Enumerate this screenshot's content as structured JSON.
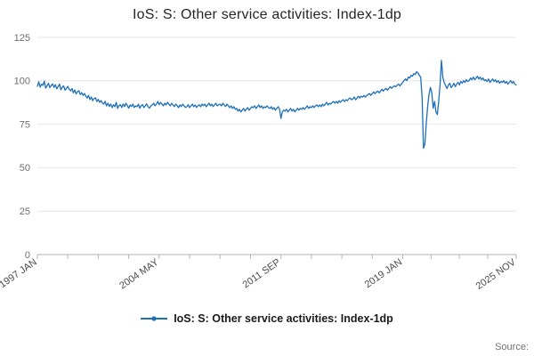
{
  "chart_data": {
    "type": "line",
    "title": "IoS: S: Other service activities: Index-1dp",
    "legend": "IoS: S: Other service activities: Index-1dp",
    "xlabel": "",
    "ylabel": "",
    "ylim": [
      0,
      125
    ],
    "yticks": [
      0,
      25,
      50,
      75,
      100,
      125
    ],
    "grid": true,
    "legend_position": "bottom",
    "line_color": "#1d70b8",
    "x_start": "1997 JAN",
    "frequency": "monthly",
    "x_tick_labels": [
      {
        "index": 0,
        "label": "1997 JAN"
      },
      {
        "index": 88,
        "label": "2004 MAY"
      },
      {
        "index": 176,
        "label": "2011 SEP"
      },
      {
        "index": 264,
        "label": "2019 JAN"
      },
      {
        "index": 346,
        "label": "2025 NOV"
      }
    ],
    "values": [
      96.9,
      99.4,
      96.3,
      98.1,
      97.4,
      99.8,
      95.8,
      97.2,
      98.6,
      96.1,
      97.3,
      98.2,
      96.2,
      97.8,
      95.4,
      96.6,
      98.1,
      94.9,
      96.3,
      97.1,
      94.6,
      95.7,
      96.8,
      95.1,
      94.2,
      95.6,
      93.1,
      94.7,
      92.4,
      93.8,
      94.3,
      92.1,
      93.2,
      91.6,
      92.7,
      91.2,
      90.1,
      91.6,
      89.2,
      90.7,
      88.6,
      89.8,
      90.2,
      88.1,
      89.3,
      87.6,
      88.7,
      87.2,
      86.6,
      88.2,
      85.6,
      87.1,
      85.2,
      86.7,
      84.6,
      86.2,
      85.1,
      87.6,
      84.1,
      85.7,
      86.2,
      84.6,
      86.7,
      85.2,
      87.1,
      85.7,
      84.2,
      86.1,
      85.2,
      86.6,
      84.7,
      85.6,
      85.1,
      86.6,
      84.2,
      85.7,
      86.2,
      84.6,
      85.6,
      86.7,
      85.1,
      84.2,
      85.6,
      86.1,
      87.1,
      85.6,
      86.6,
      88.1,
      86.2,
      87.6,
      86.7,
      85.6,
      87.1,
      86.1,
      87.6,
      86.6,
      85.6,
      87.1,
      86.1,
      85.2,
      86.6,
      85.7,
      84.6,
      86.1,
      85.2,
      86.6,
      85.6,
      84.7,
      85.1,
      86.2,
      84.6,
      85.6,
      86.6,
      85.1,
      86.1,
      84.7,
      85.6,
      86.2,
      85.1,
      86.6,
      85.7,
      86.6,
      85.1,
      86.1,
      87.1,
      85.6,
      86.6,
      85.2,
      86.1,
      87.1,
      85.6,
      86.2,
      86.6,
      85.6,
      87.1,
      86.1,
      85.2,
      86.6,
      85.6,
      84.6,
      85.6,
      84.1,
      85.1,
      83.6,
      84.1,
      82.6,
      83.6,
      82.1,
      83.1,
      84.1,
      82.6,
      83.6,
      84.6,
      83.1,
      84.1,
      85.1,
      84.6,
      85.6,
      84.1,
      85.1,
      86.1,
      84.6,
      85.6,
      84.1,
      85.1,
      84.6,
      85.6,
      84.6,
      84.1,
      85.1,
      83.6,
      84.6,
      83.1,
      84.1,
      85.1,
      83.6,
      78.4,
      82.1,
      83.1,
      82.6,
      83.6,
      82.1,
      83.1,
      84.1,
      82.6,
      83.6,
      82.1,
      83.1,
      84.1,
      83.1,
      84.1,
      83.6,
      84.6,
      83.6,
      84.6,
      85.6,
      84.1,
      85.1,
      84.6,
      85.6,
      84.6,
      85.6,
      86.1,
      85.1,
      86.1,
      85.1,
      86.6,
      85.6,
      86.6,
      87.6,
      86.1,
      87.1,
      86.6,
      87.6,
      88.1,
      87.1,
      88.1,
      87.1,
      88.6,
      87.6,
      88.6,
      89.1,
      88.1,
      89.1,
      88.6,
      89.6,
      90.1,
      89.1,
      89.6,
      90.6,
      89.1,
      90.1,
      91.1,
      90.1,
      91.1,
      90.6,
      91.6,
      90.6,
      91.6,
      92.1,
      92.6,
      91.6,
      92.6,
      93.6,
      92.6,
      93.6,
      94.1,
      93.1,
      94.1,
      95.1,
      94.1,
      95.1,
      95.6,
      94.6,
      95.6,
      96.6,
      95.6,
      96.6,
      97.1,
      96.6,
      97.6,
      98.1,
      97.1,
      98.1,
      99.1,
      100.2,
      101.1,
      100.1,
      102.1,
      101.6,
      103.1,
      102.6,
      104.1,
      103.6,
      105.2,
      104.6,
      103.1,
      102.1,
      90.2,
      61.2,
      63.6,
      75.1,
      85.2,
      92.1,
      96.2,
      93.1,
      84.2,
      88.1,
      82.1,
      80.6,
      88.2,
      98.1,
      111.8,
      101.9,
      99.1,
      97.2,
      95.6,
      97.6,
      98.6,
      96.1,
      97.1,
      98.6,
      96.6,
      98.1,
      99.1,
      97.6,
      99.6,
      98.6,
      100.1,
      99.1,
      100.6,
      99.6,
      100.1,
      101.6,
      100.6,
      102.1,
      100.6,
      101.6,
      102.6,
      101.1,
      102.1,
      100.6,
      101.6,
      100.1,
      100.6,
      99.6,
      101.1,
      99.1,
      100.1,
      101.1,
      99.6,
      100.6,
      99.1,
      100.1,
      98.6,
      99.6,
      99.1,
      100.1,
      98.6,
      99.6,
      98.1,
      99.1,
      100.1,
      98.6,
      99.6,
      98.1,
      97.6
    ]
  },
  "footer": {
    "source_label": "Source:"
  }
}
